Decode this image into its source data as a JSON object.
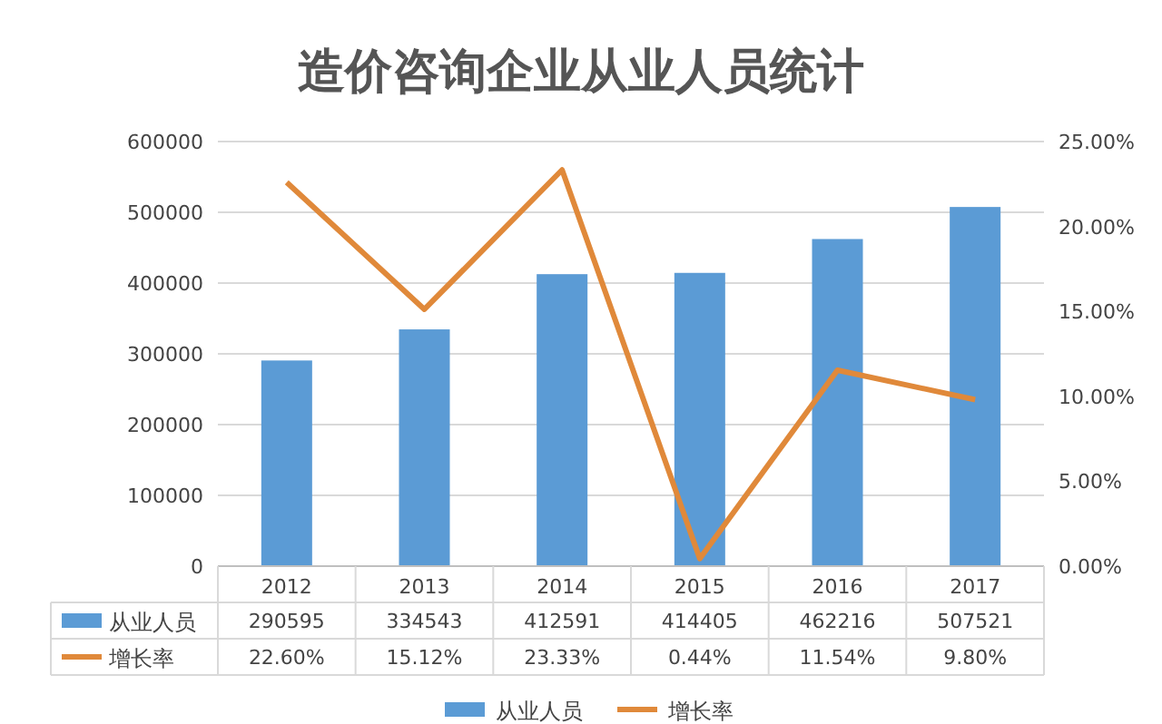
{
  "chart_data": {
    "type": "bar",
    "title": "造价咨询企业从业人员统计",
    "categories": [
      "2012",
      "2013",
      "2014",
      "2015",
      "2016",
      "2017"
    ],
    "series": [
      {
        "name": "从业人员",
        "color": "#5b9bd5",
        "values": [
          290595,
          334543,
          412591,
          414405,
          462216,
          507521
        ],
        "value_labels": [
          "290595",
          "334543",
          "412591",
          "414405",
          "462216",
          "507521"
        ]
      },
      {
        "name": "增长率",
        "type": "line",
        "axis": "y2",
        "color": "#e0893a",
        "values": [
          22.6,
          15.12,
          23.33,
          0.44,
          11.54,
          9.8
        ],
        "value_labels": [
          "22.60%",
          "15.12%",
          "23.33%",
          "0.44%",
          "11.54%",
          "9.80%"
        ]
      }
    ],
    "ylim": [
      0,
      600000
    ],
    "yticks": [
      0,
      100000,
      200000,
      300000,
      400000,
      500000,
      600000
    ],
    "y2lim": [
      0,
      25
    ],
    "y2ticks": [
      {
        "value": 0,
        "label": "0.00%"
      },
      {
        "value": 5,
        "label": "5.00%"
      },
      {
        "value": 10,
        "label": "10.00%"
      },
      {
        "value": 15,
        "label": "15.00%"
      },
      {
        "value": 20,
        "label": "20.00%"
      },
      {
        "value": 25,
        "label": "25.00%"
      }
    ],
    "grid": "y",
    "legend": "bottom",
    "marker": "none"
  }
}
